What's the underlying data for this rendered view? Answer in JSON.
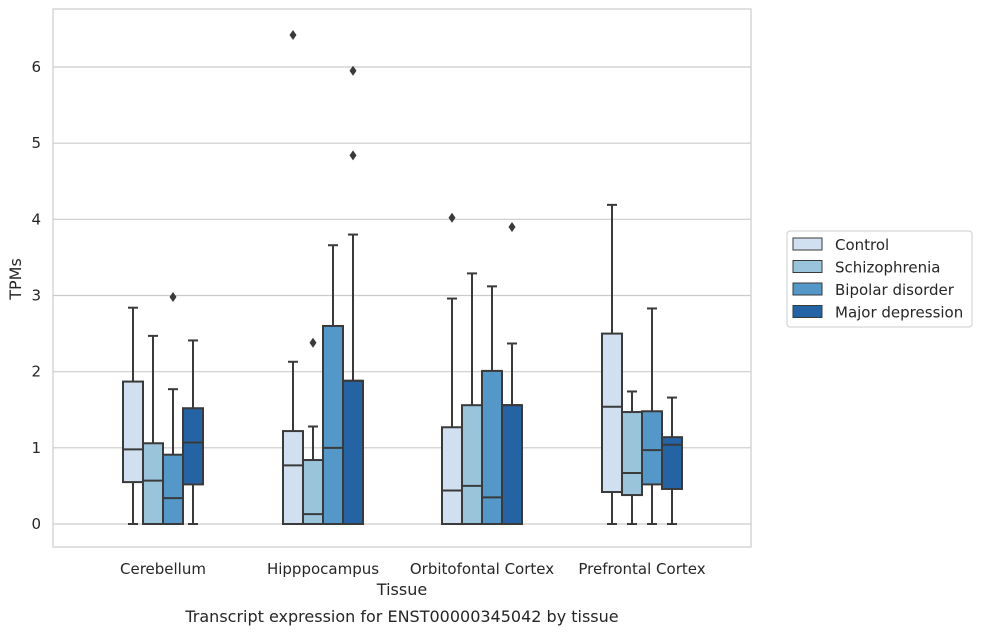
{
  "chart_data": {
    "type": "box",
    "caption": "Transcript expression for ENST00000345042 by tissue",
    "xlabel": "Tissue",
    "ylabel": "TPMs",
    "ylim": [
      -0.3,
      6.75
    ],
    "yticks": [
      0,
      1,
      2,
      3,
      4,
      5,
      6
    ],
    "grid": "horizontal",
    "legend_placement": "right",
    "categories": [
      "Cerebellum",
      "Hipppocampus",
      "Orbitofontal Cortex",
      "Prefrontal Cortex"
    ],
    "series": [
      {
        "name": "Control",
        "color": "#d1e0f0",
        "boxes": [
          {
            "whislo": 0,
            "q1": 0.55,
            "med": 0.98,
            "q3": 1.87,
            "whishi": 2.84,
            "fliers": []
          },
          {
            "whislo": 0,
            "q1": 0,
            "med": 0.77,
            "q3": 1.22,
            "whishi": 2.13,
            "fliers": [
              6.42
            ]
          },
          {
            "whislo": 0,
            "q1": 0,
            "med": 0.44,
            "q3": 1.27,
            "whishi": 2.96,
            "fliers": [
              4.02
            ]
          },
          {
            "whislo": 0,
            "q1": 0.42,
            "med": 1.54,
            "q3": 2.5,
            "whishi": 4.19,
            "fliers": []
          }
        ]
      },
      {
        "name": "Schizophrenia",
        "color": "#9ac3dc",
        "boxes": [
          {
            "whislo": 0,
            "q1": 0,
            "med": 0.57,
            "q3": 1.06,
            "whishi": 2.47,
            "fliers": []
          },
          {
            "whislo": 0,
            "q1": 0,
            "med": 0.13,
            "q3": 0.84,
            "whishi": 1.28,
            "fliers": [
              2.38
            ]
          },
          {
            "whislo": 0,
            "q1": 0,
            "med": 0.5,
            "q3": 1.56,
            "whishi": 3.29,
            "fliers": []
          },
          {
            "whislo": 0,
            "q1": 0.38,
            "med": 0.67,
            "q3": 1.47,
            "whishi": 1.74,
            "fliers": []
          }
        ]
      },
      {
        "name": "Bipolar disorder",
        "color": "#5398c8",
        "boxes": [
          {
            "whislo": 0,
            "q1": 0,
            "med": 0.34,
            "q3": 0.91,
            "whishi": 1.77,
            "fliers": [
              2.98
            ]
          },
          {
            "whislo": 0,
            "q1": 0,
            "med": 1.0,
            "q3": 2.6,
            "whishi": 3.66,
            "fliers": []
          },
          {
            "whislo": 0,
            "q1": 0,
            "med": 0.35,
            "q3": 2.01,
            "whishi": 3.12,
            "fliers": []
          },
          {
            "whislo": 0,
            "q1": 0.52,
            "med": 0.97,
            "q3": 1.48,
            "whishi": 2.83,
            "fliers": []
          }
        ]
      },
      {
        "name": "Major depression",
        "color": "#2564a4",
        "boxes": [
          {
            "whislo": 0,
            "q1": 0.52,
            "med": 1.07,
            "q3": 1.52,
            "whishi": 2.41,
            "fliers": []
          },
          {
            "whislo": 0,
            "q1": 0,
            "med": 1.88,
            "q3": 1.88,
            "whishi": 3.8,
            "fliers": [
              4.84,
              5.95
            ]
          },
          {
            "whislo": 0,
            "q1": 0,
            "med": 1.56,
            "q3": 1.56,
            "whishi": 2.37,
            "fliers": [
              3.9
            ]
          },
          {
            "whislo": 0,
            "q1": 0.46,
            "med": 1.04,
            "q3": 1.14,
            "whishi": 1.66,
            "fliers": []
          }
        ]
      }
    ]
  }
}
